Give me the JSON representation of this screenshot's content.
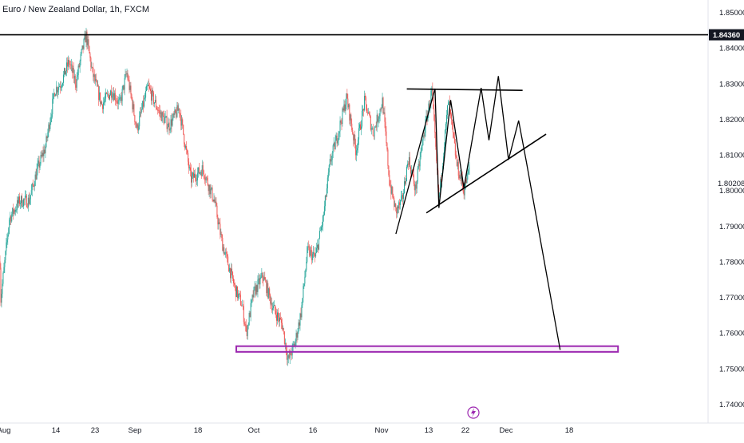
{
  "header": {
    "title": "Euro / New Zealand Dollar, 1h, FXCM"
  },
  "chart_data": {
    "type": "candlestick",
    "instrument": "Euro / New Zealand Dollar",
    "interval": "1h",
    "source": "FXCM",
    "ylim": [
      1.735,
      1.853
    ],
    "y_ticks": [
      "1.85000",
      "1.84000",
      "1.83000",
      "1.82000",
      "1.81000",
      "1.80000",
      "1.79000",
      "1.78000",
      "1.77000",
      "1.76000",
      "1.75000",
      "1.74000"
    ],
    "x_ticks": [
      "Aug",
      "14",
      "23",
      "Sep",
      "18",
      "Oct",
      "16",
      "Nov",
      "13",
      "22",
      "Dec",
      "18"
    ],
    "price_labels": {
      "resistance": "1.84360",
      "current": "1.80208"
    },
    "colors": {
      "up": "#26a69a",
      "down": "#ef5350",
      "support_zone": "#9c27b0",
      "lines": "#000000"
    },
    "series": [
      {
        "x": 0,
        "y": 1.78
      },
      {
        "x": 0.03,
        "y": 1.768
      },
      {
        "x": 1.2,
        "y": 1.792
      },
      {
        "x": 2.5,
        "y": 1.797
      },
      {
        "x": 3.7,
        "y": 1.797
      },
      {
        "x": 4.8,
        "y": 1.806
      },
      {
        "x": 5.8,
        "y": 1.812
      },
      {
        "x": 7.0,
        "y": 1.828
      },
      {
        "x": 7.8,
        "y": 1.83
      },
      {
        "x": 8.8,
        "y": 1.836
      },
      {
        "x": 9.7,
        "y": 1.83
      },
      {
        "x": 10.4,
        "y": 1.838
      },
      {
        "x": 11.0,
        "y": 1.8436
      },
      {
        "x": 11.8,
        "y": 1.833
      },
      {
        "x": 13.0,
        "y": 1.824
      },
      {
        "x": 14.3,
        "y": 1.828
      },
      {
        "x": 15.3,
        "y": 1.824
      },
      {
        "x": 16.2,
        "y": 1.833
      },
      {
        "x": 17.5,
        "y": 1.817
      },
      {
        "x": 18.9,
        "y": 1.829
      },
      {
        "x": 20.3,
        "y": 1.822
      },
      {
        "x": 21.6,
        "y": 1.818
      },
      {
        "x": 22.9,
        "y": 1.823
      },
      {
        "x": 24.4,
        "y": 1.803
      },
      {
        "x": 25.9,
        "y": 1.806
      },
      {
        "x": 27.4,
        "y": 1.797
      },
      {
        "x": 28.4,
        "y": 1.785
      },
      {
        "x": 29.2,
        "y": 1.779
      },
      {
        "x": 30.1,
        "y": 1.772
      },
      {
        "x": 30.9,
        "y": 1.768
      },
      {
        "x": 31.5,
        "y": 1.76
      },
      {
        "x": 32.4,
        "y": 1.771
      },
      {
        "x": 33.6,
        "y": 1.776
      },
      {
        "x": 34.9,
        "y": 1.767
      },
      {
        "x": 36.1,
        "y": 1.762
      },
      {
        "x": 36.8,
        "y": 1.752
      },
      {
        "x": 37.7,
        "y": 1.757
      },
      {
        "x": 38.5,
        "y": 1.766
      },
      {
        "x": 39.3,
        "y": 1.783
      },
      {
        "x": 40.3,
        "y": 1.781
      },
      {
        "x": 41.3,
        "y": 1.792
      },
      {
        "x": 42.2,
        "y": 1.808
      },
      {
        "x": 43.1,
        "y": 1.815
      },
      {
        "x": 44.3,
        "y": 1.826
      },
      {
        "x": 45.5,
        "y": 1.811
      },
      {
        "x": 46.6,
        "y": 1.825
      },
      {
        "x": 47.7,
        "y": 1.816
      },
      {
        "x": 48.9,
        "y": 1.825
      },
      {
        "x": 49.8,
        "y": 1.802
      },
      {
        "x": 50.6,
        "y": 1.794
      },
      {
        "x": 51.4,
        "y": 1.797
      },
      {
        "x": 52.2,
        "y": 1.809
      },
      {
        "x": 53.1,
        "y": 1.8
      },
      {
        "x": 54.1,
        "y": 1.815
      },
      {
        "x": 55.2,
        "y": 1.828
      },
      {
        "x": 56.1,
        "y": 1.797
      },
      {
        "x": 57.3,
        "y": 1.825
      },
      {
        "x": 58.4,
        "y": 1.807
      },
      {
        "x": 59.3,
        "y": 1.8
      },
      {
        "x": 60.0,
        "y": 1.806
      }
    ],
    "annotations": {
      "resistance_line": 1.8436,
      "support_zone": {
        "x": [
          30.2,
          79.0
        ],
        "y": [
          1.7546,
          1.7562
        ]
      },
      "triangle_top": [
        [
          52.0,
          1.8284
        ],
        [
          66.8,
          1.828
        ]
      ],
      "triangle_bottom": [
        [
          54.5,
          1.7936
        ],
        [
          69.8,
          1.8157
        ]
      ],
      "projection": [
        [
          50.6,
          1.7877
        ],
        [
          55.6,
          1.8285
        ],
        [
          56.1,
          1.795
        ],
        [
          57.6,
          1.8253
        ],
        [
          59.3,
          1.8006
        ],
        [
          61.5,
          1.8287
        ],
        [
          62.5,
          1.814
        ],
        [
          63.7,
          1.832
        ],
        [
          65.0,
          1.8085
        ],
        [
          66.3,
          1.8195
        ],
        [
          67.3,
          1.8078
        ],
        [
          71.6,
          1.7552
        ]
      ]
    }
  }
}
